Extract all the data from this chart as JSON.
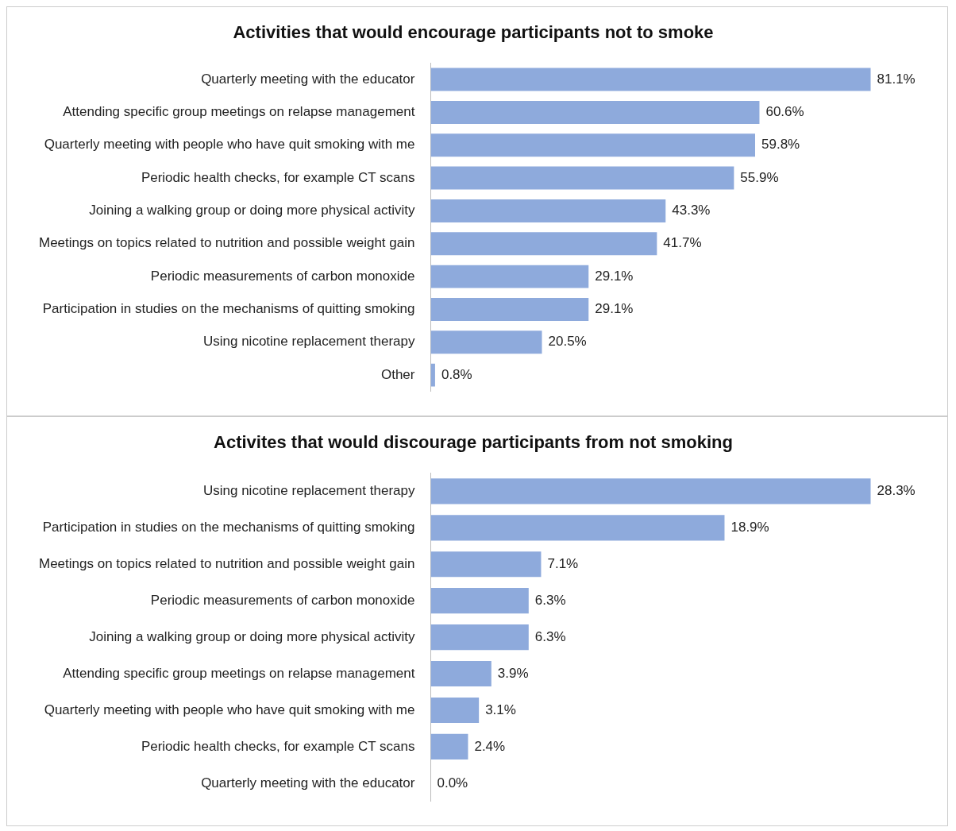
{
  "chart_data": [
    {
      "type": "bar",
      "orientation": "horizontal",
      "title": "Activities that would encourage participants not to smoke",
      "categories": [
        "Quarterly meeting with the educator",
        "Attending specific group meetings on relapse management",
        "Quarterly meeting with people who have quit smoking with me",
        "Periodic health checks, for example CT scans",
        "Joining a walking group or doing more physical activity",
        "Meetings on topics related to nutrition and possible weight gain",
        "Periodic measurements of carbon monoxide",
        "Participation in studies on the mechanisms of quitting smoking",
        "Using nicotine replacement therapy",
        "Other"
      ],
      "values": [
        81.1,
        60.6,
        59.8,
        55.9,
        43.3,
        41.7,
        29.1,
        29.1,
        20.5,
        0.8
      ],
      "value_labels": [
        "81.1%",
        "60.6%",
        "59.8%",
        "55.9%",
        "43.3%",
        "41.7%",
        "29.1%",
        "29.1%",
        "20.5%",
        "0.8%"
      ],
      "color": "#8eaadc",
      "legend": false,
      "tick_labels": "y"
    },
    {
      "type": "bar",
      "orientation": "horizontal",
      "title": "Activites that would discourage participants from not smoking",
      "categories": [
        "Using nicotine replacement therapy",
        "Participation in studies on the mechanisms of quitting smoking",
        "Meetings on topics related to nutrition and possible weight gain",
        "Periodic measurements of carbon monoxide",
        "Joining a walking group or doing more physical activity",
        "Attending specific group meetings on relapse management",
        "Quarterly meeting with people who have quit smoking with me",
        "Periodic health checks, for example CT scans",
        "Quarterly meeting with the educator"
      ],
      "values": [
        28.3,
        18.9,
        7.1,
        6.3,
        6.3,
        3.9,
        3.1,
        2.4,
        0.0
      ],
      "value_labels": [
        "28.3%",
        "18.9%",
        "7.1%",
        "6.3%",
        "6.3%",
        "3.9%",
        "3.1%",
        "2.4%",
        "0.0%"
      ],
      "color": "#8eaadc",
      "legend": false,
      "tick_labels": "y"
    }
  ]
}
